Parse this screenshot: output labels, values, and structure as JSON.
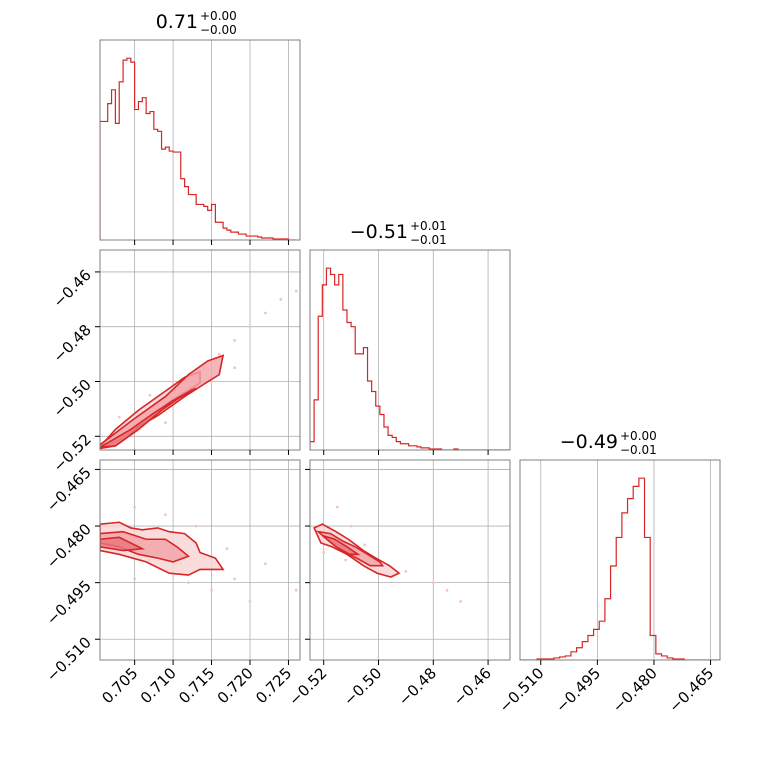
{
  "figure": {
    "type": "corner",
    "accent_color": "#d62728",
    "fill_color": "#f2a3a7",
    "scatter_color": "#f6c2c4",
    "grid_color": "#b0b0b0",
    "frame_color": "#808080"
  },
  "chart_data": [
    {
      "type": "histogram",
      "panel": "hist-0",
      "title": {
        "value": "0.71",
        "upper": "+0.00",
        "lower": "−0.00"
      },
      "xlim": [
        0.7005,
        0.7265
      ],
      "bins": [
        0.7005,
        0.701,
        0.7015,
        0.702,
        0.7025,
        0.703,
        0.7035,
        0.704,
        0.7045,
        0.705,
        0.7055,
        0.706,
        0.7065,
        0.707,
        0.7075,
        0.708,
        0.7085,
        0.709,
        0.7095,
        0.71,
        0.7105,
        0.711,
        0.7115,
        0.712,
        0.7125,
        0.713,
        0.7135,
        0.714,
        0.7145,
        0.715,
        0.7155,
        0.716,
        0.7165,
        0.717,
        0.7175,
        0.718,
        0.7185,
        0.719,
        0.7195,
        0.72,
        0.7205,
        0.721,
        0.7215,
        0.722,
        0.7225,
        0.723,
        0.7235,
        0.724,
        0.7245,
        0.725,
        0.7255,
        0.726
      ],
      "counts": [
        120,
        120,
        138,
        152,
        118,
        160,
        182,
        184,
        180,
        132,
        140,
        144,
        128,
        130,
        112,
        110,
        92,
        94,
        90,
        89,
        89,
        62,
        54,
        46,
        46,
        36,
        36,
        34,
        30,
        36,
        18,
        18,
        12,
        10,
        8,
        8,
        6,
        6,
        4,
        4,
        4,
        3,
        2,
        2,
        2,
        1,
        1,
        1,
        1,
        0,
        0
      ],
      "xticks": [
        0.705,
        0.71,
        0.715,
        0.72,
        0.725
      ],
      "xtick_labels": [
        "0.705",
        "0.710",
        "0.715",
        "0.720",
        "0.725"
      ]
    },
    {
      "type": "histogram",
      "panel": "hist-1",
      "title": {
        "value": "−0.51",
        "upper": "+0.01",
        "lower": "−0.01"
      },
      "xlim": [
        -0.525,
        -0.452
      ],
      "bins": [
        -0.525,
        -0.5235,
        -0.522,
        -0.5205,
        -0.519,
        -0.5175,
        -0.516,
        -0.5145,
        -0.513,
        -0.5115,
        -0.51,
        -0.5085,
        -0.507,
        -0.5055,
        -0.504,
        -0.5025,
        -0.501,
        -0.4995,
        -0.498,
        -0.4965,
        -0.495,
        -0.4935,
        -0.492,
        -0.4905,
        -0.489,
        -0.4875,
        -0.486,
        -0.4845,
        -0.483,
        -0.4815,
        -0.48,
        -0.4785,
        -0.477,
        -0.4755,
        -0.474,
        -0.4725,
        -0.471,
        -0.4695,
        -0.468,
        -0.4665,
        -0.465,
        -0.4635,
        -0.462,
        -0.4605,
        -0.459,
        -0.4575,
        -0.456,
        -0.4545,
        -0.453,
        -0.452
      ],
      "counts": [
        8,
        48,
        128,
        158,
        174,
        168,
        158,
        168,
        134,
        122,
        118,
        92,
        92,
        98,
        66,
        56,
        42,
        34,
        22,
        14,
        12,
        8,
        6,
        6,
        4,
        4,
        3,
        2,
        2,
        1,
        1,
        1,
        0,
        0,
        0,
        1,
        0,
        0,
        0,
        0,
        0,
        0,
        0,
        0,
        0,
        0,
        0,
        0,
        0
      ],
      "xticks": [
        -0.52,
        -0.5,
        -0.48,
        -0.46
      ],
      "xtick_labels": [
        "−0.52",
        "−0.50",
        "−0.48",
        "−0.46"
      ]
    },
    {
      "type": "histogram",
      "panel": "hist-2",
      "title": {
        "value": "−0.49",
        "upper": "+0.00",
        "lower": "−0.01"
      },
      "xlim": [
        -0.5155,
        -0.4625
      ],
      "bins": [
        -0.5155,
        -0.514,
        -0.5125,
        -0.511,
        -0.5095,
        -0.508,
        -0.5065,
        -0.505,
        -0.5035,
        -0.502,
        -0.5005,
        -0.499,
        -0.4975,
        -0.496,
        -0.4945,
        -0.493,
        -0.4915,
        -0.49,
        -0.4885,
        -0.487,
        -0.4855,
        -0.484,
        -0.4825,
        -0.481,
        -0.4795,
        -0.478,
        -0.4765,
        -0.475,
        -0.4735,
        -0.472,
        -0.4705,
        -0.469,
        -0.4675,
        -0.466,
        -0.4645,
        -0.4625
      ],
      "counts": [
        0,
        0,
        0,
        1,
        1,
        1,
        2,
        3,
        4,
        8,
        12,
        18,
        24,
        30,
        38,
        60,
        92,
        120,
        144,
        158,
        170,
        178,
        120,
        24,
        6,
        4,
        2,
        1,
        1,
        0,
        0,
        0,
        0,
        0,
        0
      ],
      "xticks": [
        -0.51,
        -0.495,
        -0.48,
        -0.465
      ],
      "xtick_labels": [
        "−0.510",
        "−0.495",
        "−0.480",
        "−0.465"
      ]
    },
    {
      "type": "scatter",
      "panel": "pair-1-0",
      "xlim": [
        0.7005,
        0.7265
      ],
      "ylim": [
        -0.525,
        -0.452
      ],
      "yticks": [
        -0.52,
        -0.5,
        -0.48,
        -0.46
      ],
      "ytick_labels": [
        "−0.52",
        "−0.50",
        "−0.48",
        "−0.46"
      ],
      "points": [
        [
          0.712,
          -0.5
        ],
        [
          0.714,
          -0.495
        ],
        [
          0.716,
          -0.49
        ],
        [
          0.718,
          -0.485
        ],
        [
          0.72,
          -0.48
        ],
        [
          0.722,
          -0.475
        ],
        [
          0.724,
          -0.47
        ],
        [
          0.726,
          -0.467
        ],
        [
          0.71,
          -0.5
        ],
        [
          0.707,
          -0.505
        ],
        [
          0.703,
          -0.513
        ],
        [
          0.709,
          -0.515
        ],
        [
          0.715,
          -0.5
        ],
        [
          0.718,
          -0.495
        ],
        [
          0.704,
          -0.52
        ],
        [
          0.706,
          -0.515
        ]
      ],
      "contours": [
        [
          [
            0.7003,
            -0.5245
          ],
          [
            0.7025,
            -0.5175
          ],
          [
            0.7055,
            -0.5105
          ],
          [
            0.709,
            -0.5035
          ],
          [
            0.7115,
            -0.4985
          ],
          [
            0.7135,
            -0.4965
          ],
          [
            0.7135,
            -0.5005
          ],
          [
            0.7095,
            -0.5075
          ],
          [
            0.7065,
            -0.5145
          ],
          [
            0.703,
            -0.5215
          ],
          [
            0.7003,
            -0.5245
          ]
        ],
        [
          [
            0.7003,
            -0.5235
          ],
          [
            0.705,
            -0.5135
          ],
          [
            0.709,
            -0.5055
          ],
          [
            0.712,
            -0.4975
          ],
          [
            0.7145,
            -0.4925
          ],
          [
            0.7165,
            -0.4905
          ],
          [
            0.716,
            -0.4975
          ],
          [
            0.714,
            -0.501
          ],
          [
            0.7115,
            -0.5055
          ],
          [
            0.708,
            -0.5125
          ],
          [
            0.7055,
            -0.5165
          ],
          [
            0.704,
            -0.5205
          ],
          [
            0.7025,
            -0.5235
          ],
          [
            0.7003,
            -0.5245
          ]
        ],
        [
          [
            0.7005,
            -0.524
          ],
          [
            0.7045,
            -0.5175
          ],
          [
            0.7075,
            -0.5115
          ],
          [
            0.71,
            -0.507
          ],
          [
            0.7125,
            -0.503
          ],
          [
            0.713,
            -0.5025
          ],
          [
            0.7105,
            -0.5065
          ],
          [
            0.7085,
            -0.5105
          ],
          [
            0.7055,
            -0.5175
          ],
          [
            0.7025,
            -0.5235
          ],
          [
            0.7005,
            -0.524
          ]
        ]
      ]
    },
    {
      "type": "scatter",
      "panel": "pair-2-0",
      "xlim": [
        0.7005,
        0.7265
      ],
      "ylim": [
        -0.5155,
        -0.4625
      ],
      "yticks": [
        -0.51,
        -0.495,
        -0.48,
        -0.465
      ],
      "ytick_labels": [
        "−0.510",
        "−0.495",
        "−0.480",
        "−0.465"
      ],
      "points": [
        [
          0.713,
          -0.48
        ],
        [
          0.709,
          -0.477
        ],
        [
          0.711,
          -0.49
        ],
        [
          0.718,
          -0.494
        ],
        [
          0.72,
          -0.5
        ],
        [
          0.715,
          -0.497
        ],
        [
          0.705,
          -0.475
        ],
        [
          0.703,
          -0.486
        ],
        [
          0.707,
          -0.489
        ],
        [
          0.717,
          -0.486
        ],
        [
          0.726,
          -0.497
        ],
        [
          0.722,
          -0.49
        ],
        [
          0.705,
          -0.494
        ],
        [
          0.712,
          -0.495
        ]
      ],
      "contours": [
        [
          [
            0.7005,
            -0.4795
          ],
          [
            0.703,
            -0.479
          ],
          [
            0.7045,
            -0.4805
          ],
          [
            0.706,
            -0.481
          ],
          [
            0.708,
            -0.4805
          ],
          [
            0.7095,
            -0.4815
          ],
          [
            0.7115,
            -0.482
          ],
          [
            0.713,
            -0.4845
          ],
          [
            0.7135,
            -0.487
          ],
          [
            0.7155,
            -0.4885
          ],
          [
            0.7165,
            -0.4915
          ],
          [
            0.7135,
            -0.4915
          ],
          [
            0.712,
            -0.493
          ],
          [
            0.7095,
            -0.4925
          ],
          [
            0.7065,
            -0.4895
          ],
          [
            0.703,
            -0.4875
          ],
          [
            0.7005,
            -0.4865
          ],
          [
            0.7005,
            -0.4795
          ]
        ],
        [
          [
            0.7005,
            -0.482
          ],
          [
            0.7035,
            -0.4815
          ],
          [
            0.7065,
            -0.4835
          ],
          [
            0.709,
            -0.4835
          ],
          [
            0.7105,
            -0.4855
          ],
          [
            0.712,
            -0.488
          ],
          [
            0.71,
            -0.4895
          ],
          [
            0.708,
            -0.4885
          ],
          [
            0.7055,
            -0.4875
          ],
          [
            0.703,
            -0.4855
          ],
          [
            0.7005,
            -0.4845
          ],
          [
            0.7005,
            -0.482
          ]
        ],
        [
          [
            0.7005,
            -0.4835
          ],
          [
            0.703,
            -0.483
          ],
          [
            0.7045,
            -0.4845
          ],
          [
            0.706,
            -0.486
          ],
          [
            0.7035,
            -0.4865
          ],
          [
            0.7005,
            -0.4855
          ],
          [
            0.7005,
            -0.4835
          ]
        ]
      ]
    },
    {
      "type": "scatter",
      "panel": "pair-2-1",
      "xlim": [
        -0.525,
        -0.452
      ],
      "ylim": [
        -0.5155,
        -0.4625
      ],
      "points": [
        [
          -0.515,
          -0.475
        ],
        [
          -0.51,
          -0.48
        ],
        [
          -0.505,
          -0.485
        ],
        [
          -0.5,
          -0.49
        ],
        [
          -0.495,
          -0.493
        ],
        [
          -0.49,
          -0.492
        ],
        [
          -0.48,
          -0.495
        ],
        [
          -0.475,
          -0.497
        ],
        [
          -0.47,
          -0.5
        ],
        [
          -0.52,
          -0.487
        ],
        [
          -0.512,
          -0.489
        ]
      ],
      "contours": [
        [
          [
            -0.5235,
            -0.4805
          ],
          [
            -0.5205,
            -0.4795
          ],
          [
            -0.5155,
            -0.4815
          ],
          [
            -0.511,
            -0.4835
          ],
          [
            -0.5055,
            -0.4865
          ],
          [
            -0.501,
            -0.4885
          ],
          [
            -0.496,
            -0.4905
          ],
          [
            -0.4925,
            -0.4925
          ],
          [
            -0.4955,
            -0.4935
          ],
          [
            -0.5005,
            -0.4925
          ],
          [
            -0.5055,
            -0.4905
          ],
          [
            -0.5115,
            -0.4875
          ],
          [
            -0.517,
            -0.4855
          ],
          [
            -0.521,
            -0.4845
          ],
          [
            -0.5235,
            -0.4805
          ]
        ],
        [
          [
            -0.522,
            -0.4815
          ],
          [
            -0.5175,
            -0.482
          ],
          [
            -0.513,
            -0.484
          ],
          [
            -0.5085,
            -0.4855
          ],
          [
            -0.504,
            -0.4875
          ],
          [
            -0.4995,
            -0.4895
          ],
          [
            -0.4985,
            -0.4905
          ],
          [
            -0.503,
            -0.4905
          ],
          [
            -0.508,
            -0.4885
          ],
          [
            -0.5135,
            -0.4865
          ],
          [
            -0.518,
            -0.484
          ],
          [
            -0.522,
            -0.4815
          ]
        ],
        [
          [
            -0.5205,
            -0.4825
          ],
          [
            -0.516,
            -0.4835
          ],
          [
            -0.5115,
            -0.4855
          ],
          [
            -0.5075,
            -0.4875
          ],
          [
            -0.5105,
            -0.4875
          ],
          [
            -0.5155,
            -0.4855
          ],
          [
            -0.5205,
            -0.4825
          ]
        ]
      ]
    }
  ]
}
